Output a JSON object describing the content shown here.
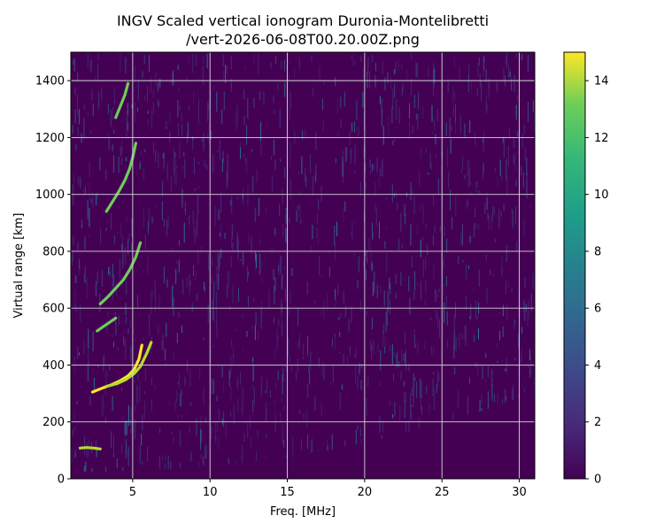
{
  "chart_data": {
    "type": "heatmap",
    "title": "INGV Scaled vertical ionogram Duronia-Montelibretti",
    "subtitle": "/vert-2026-06-08T00.20.00Z.png",
    "xlabel": "Freq. [MHz]",
    "ylabel": "Virtual range [km]",
    "xlim": [
      1,
      31
    ],
    "ylim": [
      0,
      1500
    ],
    "xticks": [
      5,
      10,
      15,
      20,
      25,
      30
    ],
    "yticks": [
      0,
      200,
      400,
      600,
      800,
      1000,
      1200,
      1400
    ],
    "grid": true,
    "colormap": "viridis",
    "colorbar": {
      "min": 0,
      "max": 15,
      "ticks": [
        0,
        2,
        4,
        6,
        8,
        10,
        12,
        14
      ]
    },
    "background_level": 1,
    "traces": [
      {
        "name": "",
        "points": [
          [
            1.6,
            108
          ],
          [
            2.0,
            110
          ],
          [
            2.5,
            108
          ],
          [
            2.9,
            105
          ]
        ],
        "intensity": 13
      },
      {
        "name": "",
        "points": [
          [
            2.4,
            305
          ],
          [
            3.0,
            318
          ],
          [
            3.6,
            330
          ],
          [
            4.2,
            345
          ],
          [
            4.7,
            362
          ],
          [
            5.1,
            385
          ],
          [
            5.4,
            420
          ],
          [
            5.6,
            470
          ]
        ],
        "intensity": 15
      },
      {
        "name": "",
        "points": [
          [
            3.3,
            325
          ],
          [
            4.0,
            335
          ],
          [
            4.6,
            350
          ],
          [
            5.1,
            370
          ],
          [
            5.5,
            395
          ],
          [
            5.9,
            440
          ],
          [
            6.2,
            480
          ]
        ],
        "intensity": 14
      },
      {
        "name": "",
        "points": [
          [
            2.7,
            520
          ],
          [
            3.1,
            535
          ],
          [
            3.5,
            550
          ],
          [
            3.9,
            565
          ]
        ],
        "intensity": 12
      },
      {
        "name": "",
        "points": [
          [
            2.9,
            615
          ],
          [
            3.4,
            640
          ],
          [
            3.9,
            670
          ],
          [
            4.4,
            700
          ],
          [
            4.8,
            735
          ],
          [
            5.2,
            780
          ],
          [
            5.5,
            830
          ]
        ],
        "intensity": 12
      },
      {
        "name": "",
        "points": [
          [
            3.3,
            940
          ],
          [
            3.7,
            975
          ],
          [
            4.1,
            1010
          ],
          [
            4.5,
            1050
          ],
          [
            4.8,
            1090
          ],
          [
            5.0,
            1130
          ],
          [
            5.2,
            1180
          ]
        ],
        "intensity": 12
      },
      {
        "name": "",
        "points": [
          [
            3.9,
            1270
          ],
          [
            4.2,
            1310
          ],
          [
            4.5,
            1350
          ],
          [
            4.7,
            1390
          ]
        ],
        "intensity": 11
      }
    ]
  }
}
